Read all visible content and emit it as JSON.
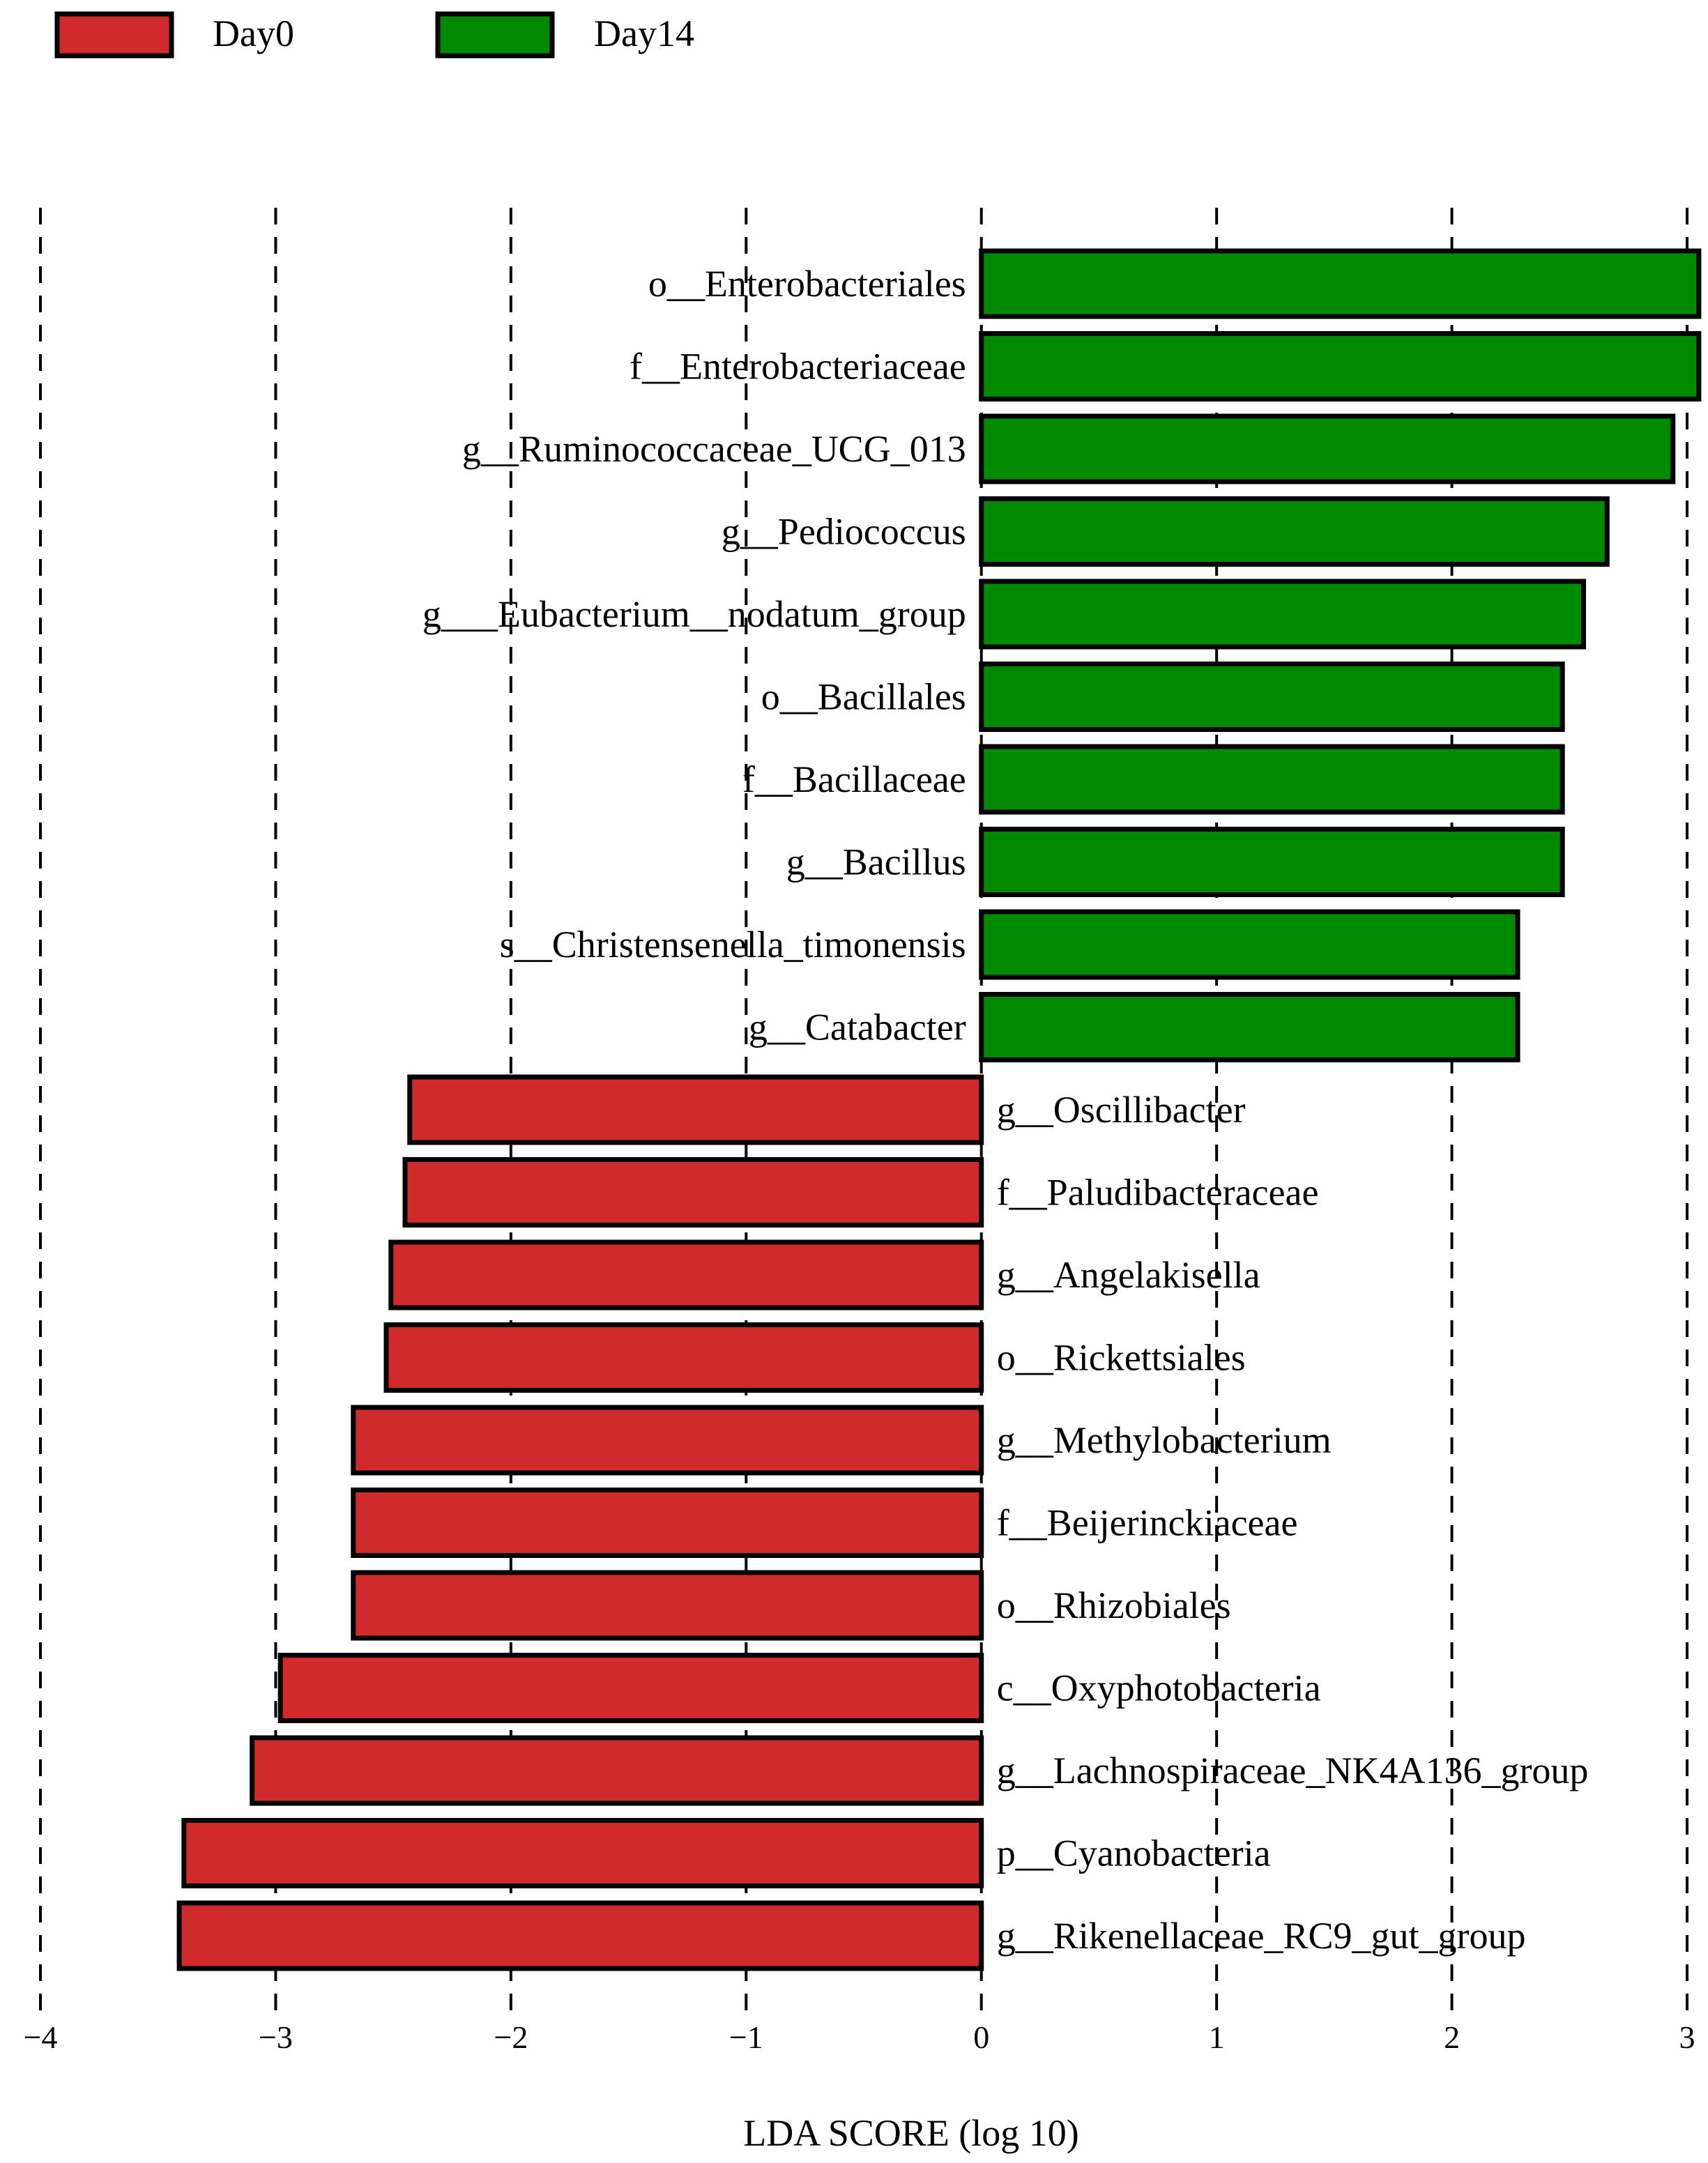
{
  "chart_data": {
    "type": "bar",
    "orientation": "horizontal",
    "xlabel": "LDA SCORE (log 10)",
    "xlim": [
      -4,
      3
    ],
    "xticks": [
      -4,
      -3,
      -2,
      -1,
      0,
      1,
      2,
      3
    ],
    "xtick_labels": [
      "−4",
      "−3",
      "−2",
      "−1",
      "0",
      "1",
      "2",
      "3"
    ],
    "grid": "vertical dashed at each tick",
    "legend_position": "top-left",
    "series": [
      {
        "name": "Day0",
        "color": "#d12a2a"
      },
      {
        "name": "Day14",
        "color": "#008a00"
      }
    ],
    "bars": [
      {
        "label": "o__Enterobacteriales",
        "group": "Day14",
        "value": 3.05
      },
      {
        "label": "f__Enterobacteriaceae",
        "group": "Day14",
        "value": 3.05
      },
      {
        "label": "g__Ruminococcaceae_UCG_013",
        "group": "Day14",
        "value": 2.94
      },
      {
        "label": "g__Pediococcus",
        "group": "Day14",
        "value": 2.66
      },
      {
        "label": "g___Eubacterium__nodatum_group",
        "group": "Day14",
        "value": 2.56
      },
      {
        "label": "o__Bacillales",
        "group": "Day14",
        "value": 2.47
      },
      {
        "label": "f__Bacillaceae",
        "group": "Day14",
        "value": 2.47
      },
      {
        "label": "g__Bacillus",
        "group": "Day14",
        "value": 2.47
      },
      {
        "label": "s__Christensenella_timonensis",
        "group": "Day14",
        "value": 2.28
      },
      {
        "label": "g__Catabacter",
        "group": "Day14",
        "value": 2.28
      },
      {
        "label": "g__Oscillibacter",
        "group": "Day0",
        "value": -2.43
      },
      {
        "label": "f__Paludibacteraceae",
        "group": "Day0",
        "value": -2.45
      },
      {
        "label": "g__Angelakisella",
        "group": "Day0",
        "value": -2.51
      },
      {
        "label": "o__Rickettsiales",
        "group": "Day0",
        "value": -2.53
      },
      {
        "label": "g__Methylobacterium",
        "group": "Day0",
        "value": -2.67
      },
      {
        "label": "f__Beijerinckiaceae",
        "group": "Day0",
        "value": -2.67
      },
      {
        "label": "o__Rhizobiales",
        "group": "Day0",
        "value": -2.67
      },
      {
        "label": "c__Oxyphotobacteria",
        "group": "Day0",
        "value": -2.98
      },
      {
        "label": "g__Lachnospiraceae_NK4A136_group",
        "group": "Day0",
        "value": -3.1
      },
      {
        "label": "p__Cyanobacteria",
        "group": "Day0",
        "value": -3.39
      },
      {
        "label": "g__Rikenellaceae_RC9_gut_group",
        "group": "Day0",
        "value": -3.41
      }
    ]
  }
}
